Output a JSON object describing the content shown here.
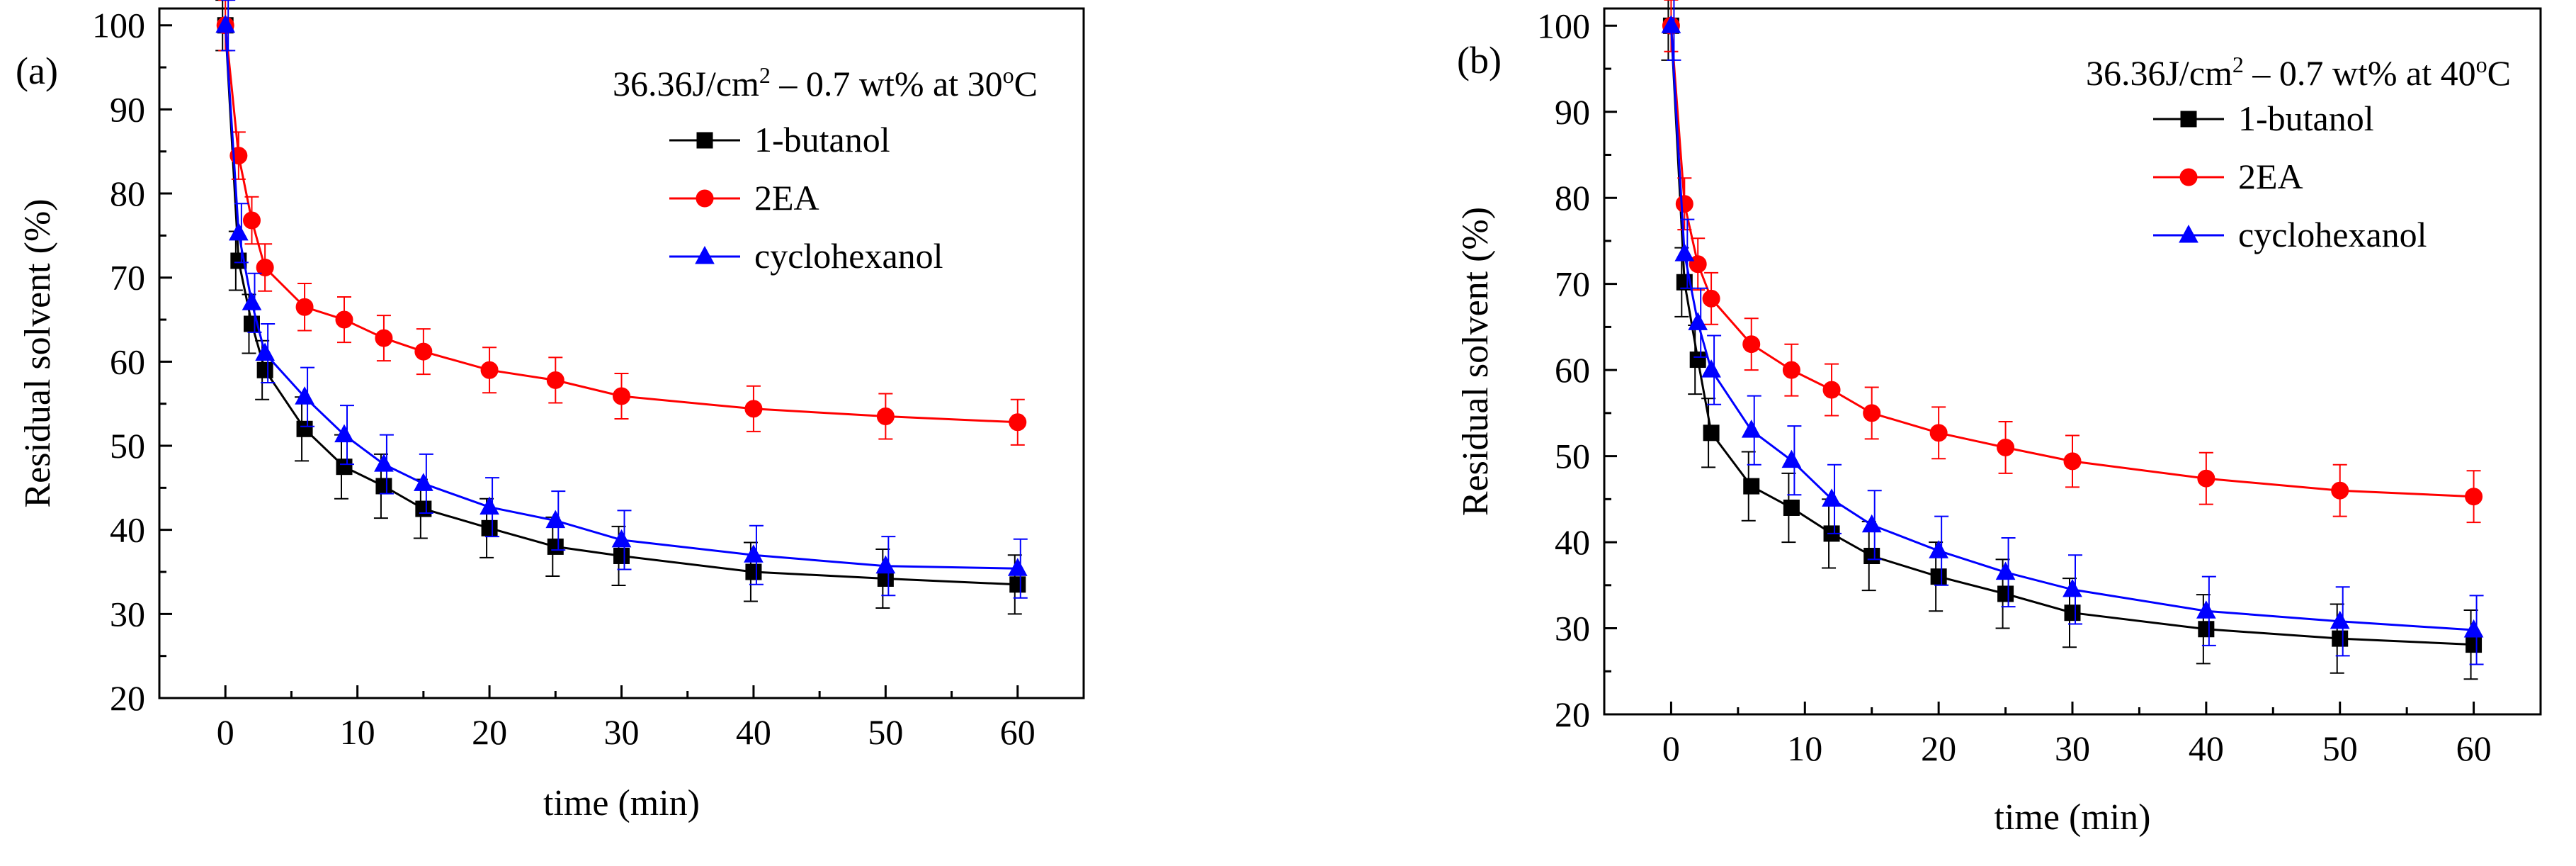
{
  "chart_data": [
    {
      "type": "line",
      "panel_label": "(a)",
      "annotation": {
        "prefix": "36.36J/cm",
        "sup1": "2",
        "mid": " – 0.7 wt% at 30",
        "sup2": "o",
        "suffix": "C"
      },
      "xlabel": "time (min)",
      "ylabel": "Residual solvent (%)",
      "xlim": [
        -5,
        65
      ],
      "ylim": [
        20,
        102
      ],
      "xticks": [
        0,
        10,
        20,
        30,
        40,
        50,
        60
      ],
      "yticks": [
        20,
        30,
        40,
        50,
        60,
        70,
        80,
        90,
        100
      ],
      "x": [
        0,
        1,
        2,
        3,
        6,
        9,
        12,
        15,
        20,
        25,
        30,
        40,
        50,
        60
      ],
      "legend_position": "top-right",
      "series": [
        {
          "name": "1-butanol",
          "color": "#000000",
          "marker": "square",
          "values": [
            100,
            72,
            64.5,
            59,
            52,
            47.5,
            45.2,
            42.5,
            40.2,
            38,
            36.9,
            35,
            34.2,
            33.5
          ],
          "errors": [
            3,
            3.5,
            3.5,
            3.5,
            3.8,
            3.8,
            3.8,
            3.5,
            3.5,
            3.5,
            3.5,
            3.5,
            3.5,
            3.5
          ]
        },
        {
          "name": "2EA",
          "color": "#ff0000",
          "marker": "circle",
          "values": [
            100,
            84.5,
            76.8,
            71.2,
            66.5,
            65,
            62.8,
            61.2,
            59,
            57.8,
            55.9,
            54.4,
            53.5,
            52.8
          ],
          "errors": [
            3,
            2.8,
            2.8,
            2.8,
            2.8,
            2.7,
            2.7,
            2.7,
            2.7,
            2.7,
            2.7,
            2.7,
            2.7,
            2.7
          ]
        },
        {
          "name": "cyclohexanol",
          "color": "#0000ff",
          "marker": "triangle",
          "values": [
            100,
            75.3,
            67,
            61,
            55.8,
            51.3,
            47.8,
            45.5,
            42.7,
            41.1,
            38.8,
            37,
            35.7,
            35.4
          ],
          "errors": [
            3,
            3.5,
            3.5,
            3.5,
            3.5,
            3.5,
            3.5,
            3.5,
            3.5,
            3.5,
            3.5,
            3.5,
            3.5,
            3.5
          ]
        }
      ]
    },
    {
      "type": "line",
      "panel_label": "(b)",
      "annotation": {
        "prefix": "36.36J/cm",
        "sup1": "2",
        "mid": " – 0.7 wt% at 40",
        "sup2": "o",
        "suffix": "C"
      },
      "xlabel": "time (min)",
      "ylabel": "Residual solvent (%)",
      "xlim": [
        -5,
        65
      ],
      "ylim": [
        20,
        102
      ],
      "xticks": [
        0,
        10,
        20,
        30,
        40,
        50,
        60
      ],
      "yticks": [
        20,
        30,
        40,
        50,
        60,
        70,
        80,
        90,
        100
      ],
      "x": [
        0,
        1,
        2,
        3,
        6,
        9,
        12,
        15,
        20,
        25,
        30,
        40,
        50,
        60
      ],
      "legend_position": "top-right",
      "series": [
        {
          "name": "1-butanol",
          "color": "#000000",
          "marker": "square",
          "values": [
            100,
            70.2,
            61.2,
            52.7,
            46.5,
            44,
            41,
            38.4,
            36,
            34,
            31.8,
            29.9,
            28.8,
            28.1
          ],
          "errors": [
            4,
            4,
            4,
            4,
            4,
            4,
            4,
            4,
            4,
            4,
            4,
            4,
            4,
            4
          ]
        },
        {
          "name": "2EA",
          "color": "#ff0000",
          "marker": "circle",
          "values": [
            100,
            79.3,
            72.3,
            68.3,
            63,
            60,
            57.7,
            55,
            52.7,
            51,
            49.4,
            47.4,
            46,
            45.3
          ],
          "errors": [
            3,
            3,
            3,
            3,
            3,
            3,
            3,
            3,
            3,
            3,
            3,
            3,
            3,
            3
          ]
        },
        {
          "name": "cyclohexanol",
          "color": "#0000ff",
          "marker": "triangle",
          "values": [
            100,
            73.5,
            65.5,
            60,
            53,
            49.5,
            45,
            42,
            39,
            36.5,
            34.5,
            32,
            30.8,
            29.8
          ],
          "errors": [
            4,
            4,
            4,
            4,
            4,
            4,
            4,
            4,
            4,
            4,
            4,
            4,
            4,
            4
          ]
        }
      ]
    }
  ]
}
